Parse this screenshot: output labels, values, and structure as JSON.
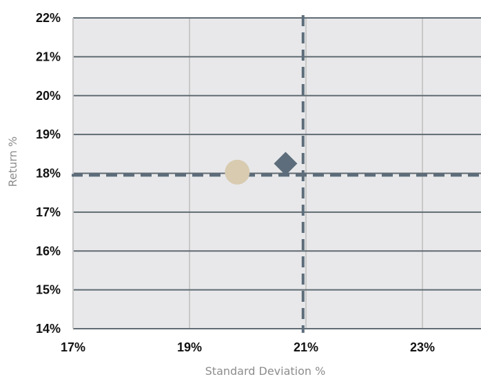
{
  "chart_data": {
    "type": "scatter",
    "title": "",
    "xlabel": "Standard Deviation %",
    "ylabel": "Return %",
    "xlim": [
      17,
      24
    ],
    "ylim": [
      14,
      22
    ],
    "x_ticks": [
      17,
      19,
      21,
      23
    ],
    "x_tick_labels": [
      "17%",
      "19%",
      "21%",
      "23%"
    ],
    "y_ticks": [
      14,
      15,
      16,
      17,
      18,
      19,
      20,
      21,
      22
    ],
    "y_tick_labels": [
      "14%",
      "15%",
      "16%",
      "17%",
      "18%",
      "19%",
      "20%",
      "21%",
      "22%"
    ],
    "x_grid": true,
    "y_grid": true,
    "legend": "none",
    "plot_background": "#e8e8ea",
    "colors": {
      "grid_x": "#c8c8c8",
      "grid_y": "#5f6a72",
      "reference": "#5d6d7b",
      "circle": "#d8cbb0",
      "diamond": "#5d6d7b"
    },
    "points": [
      {
        "shape": "circle",
        "x": 19.82,
        "y": 18.03
      },
      {
        "shape": "diamond",
        "x": 20.65,
        "y": 18.25
      }
    ],
    "reference_lines": [
      {
        "orientation": "vertical",
        "x": 20.95,
        "style": "dashed"
      },
      {
        "orientation": "horizontal",
        "y": 17.95,
        "style": "dashed"
      }
    ]
  }
}
